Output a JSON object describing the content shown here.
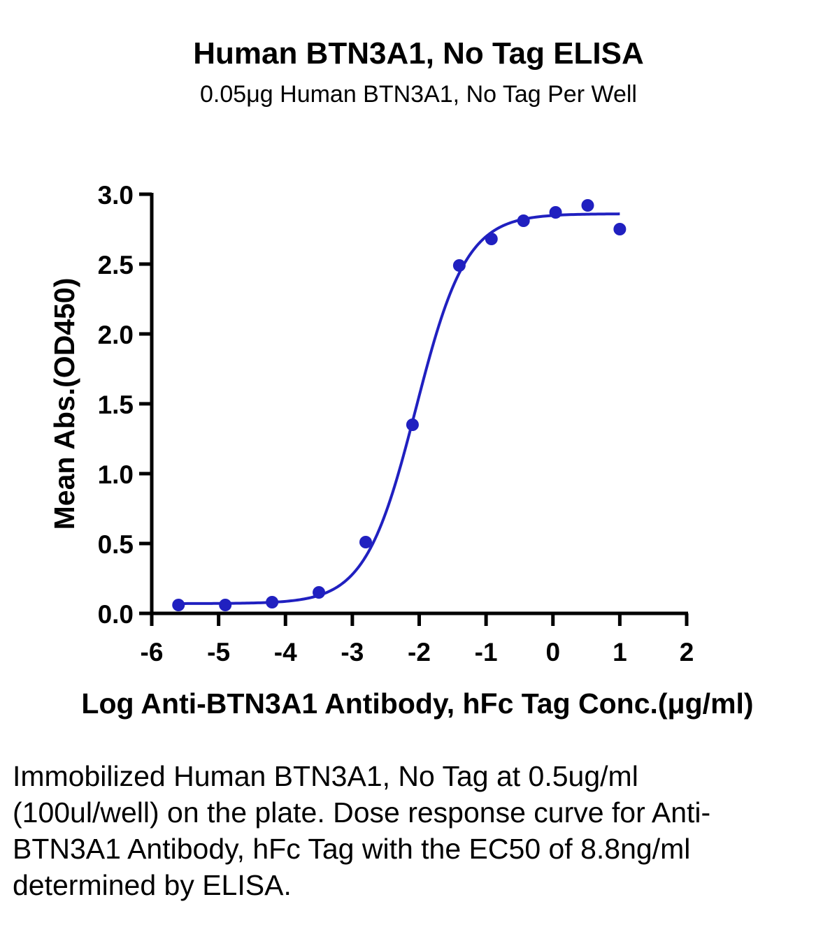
{
  "chart_data": {
    "type": "scatter",
    "title": "Human BTN3A1, No Tag ELISA",
    "subtitle": "0.05μg Human BTN3A1, No Tag Per Well",
    "xlabel": "Log Anti-BTN3A1 Antibody, hFc Tag Conc.(μg/ml)",
    "ylabel": "Mean Abs.(OD450)",
    "xlim": [
      -6,
      2
    ],
    "ylim": [
      0,
      3.0
    ],
    "xticks": [
      "-6",
      "-5",
      "-4",
      "-3",
      "-2",
      "-1",
      "0",
      "1",
      "2"
    ],
    "yticks": [
      "0.0",
      "0.5",
      "1.0",
      "1.5",
      "2.0",
      "2.5",
      "3.0"
    ],
    "color": "#2020c0",
    "grid": false,
    "points": {
      "x": [
        -5.6,
        -4.9,
        -4.2,
        -3.5,
        -2.8,
        -2.1,
        -1.4,
        -0.92,
        -0.44,
        0.04,
        0.52,
        1.0
      ],
      "y": [
        0.06,
        0.06,
        0.08,
        0.15,
        0.51,
        1.35,
        2.49,
        2.68,
        2.81,
        2.87,
        2.92,
        2.75
      ]
    },
    "fit": {
      "type": "four-parameter logistic",
      "bottom": 0.07,
      "top": 2.86,
      "log_ec50": -2.05,
      "hill_slope": 1.15,
      "x_range": [
        -5.6,
        1.0
      ]
    }
  },
  "caption": "Immobilized Human BTN3A1, No Tag at 0.5ug/ml (100ul/well) on the plate. Dose response curve for Anti-BTN3A1 Antibody, hFc Tag with the EC50 of 8.8ng/ml determined by ELISA."
}
